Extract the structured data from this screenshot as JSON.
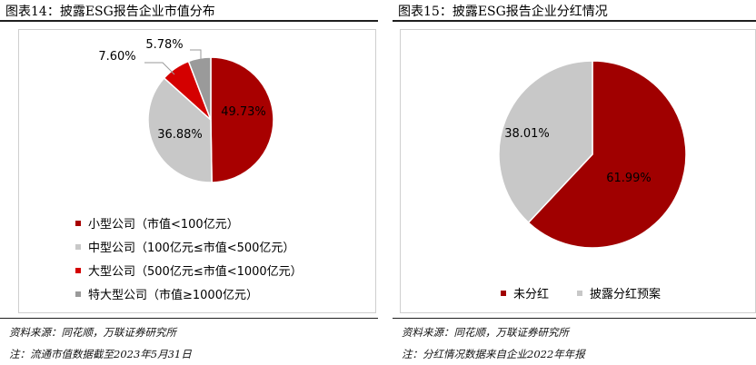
{
  "figures": [
    {
      "title": "图表14：披露ESG报告企业市值分布",
      "source": "资料来源：同花顺，万联证券研究所",
      "footnote": "注：流通市值数据截至2023年5月31日"
    },
    {
      "title": "图表15：披露ESG报告企业分红情况",
      "source": "资料来源：同花顺，万联证券研究所",
      "footnote": "注：分红情况数据来自企业2022年年报"
    }
  ],
  "chart_data": [
    {
      "type": "pie",
      "labels": [
        "小型公司（市值<100亿元）",
        "中型公司（100亿元≤市值<500亿元）",
        "大型公司（500亿元≤市值<1000亿元）",
        "特大型公司（市值≥1000亿元）"
      ],
      "values": [
        49.73,
        36.88,
        7.6,
        5.78
      ],
      "value_labels": [
        "49.73%",
        "36.88%",
        "7.60%",
        "5.78%"
      ],
      "colors": [
        "#a80000",
        "#c8c8c8",
        "#d40000",
        "#9a9a9a"
      ],
      "legend_position": "bottom-left"
    },
    {
      "type": "pie",
      "labels": [
        "未分红",
        "披露分红预案"
      ],
      "values": [
        61.99,
        38.01
      ],
      "value_labels": [
        "61.99%",
        "38.01%"
      ],
      "colors": [
        "#a00000",
        "#c8c8c8"
      ],
      "legend_position": "bottom"
    }
  ]
}
